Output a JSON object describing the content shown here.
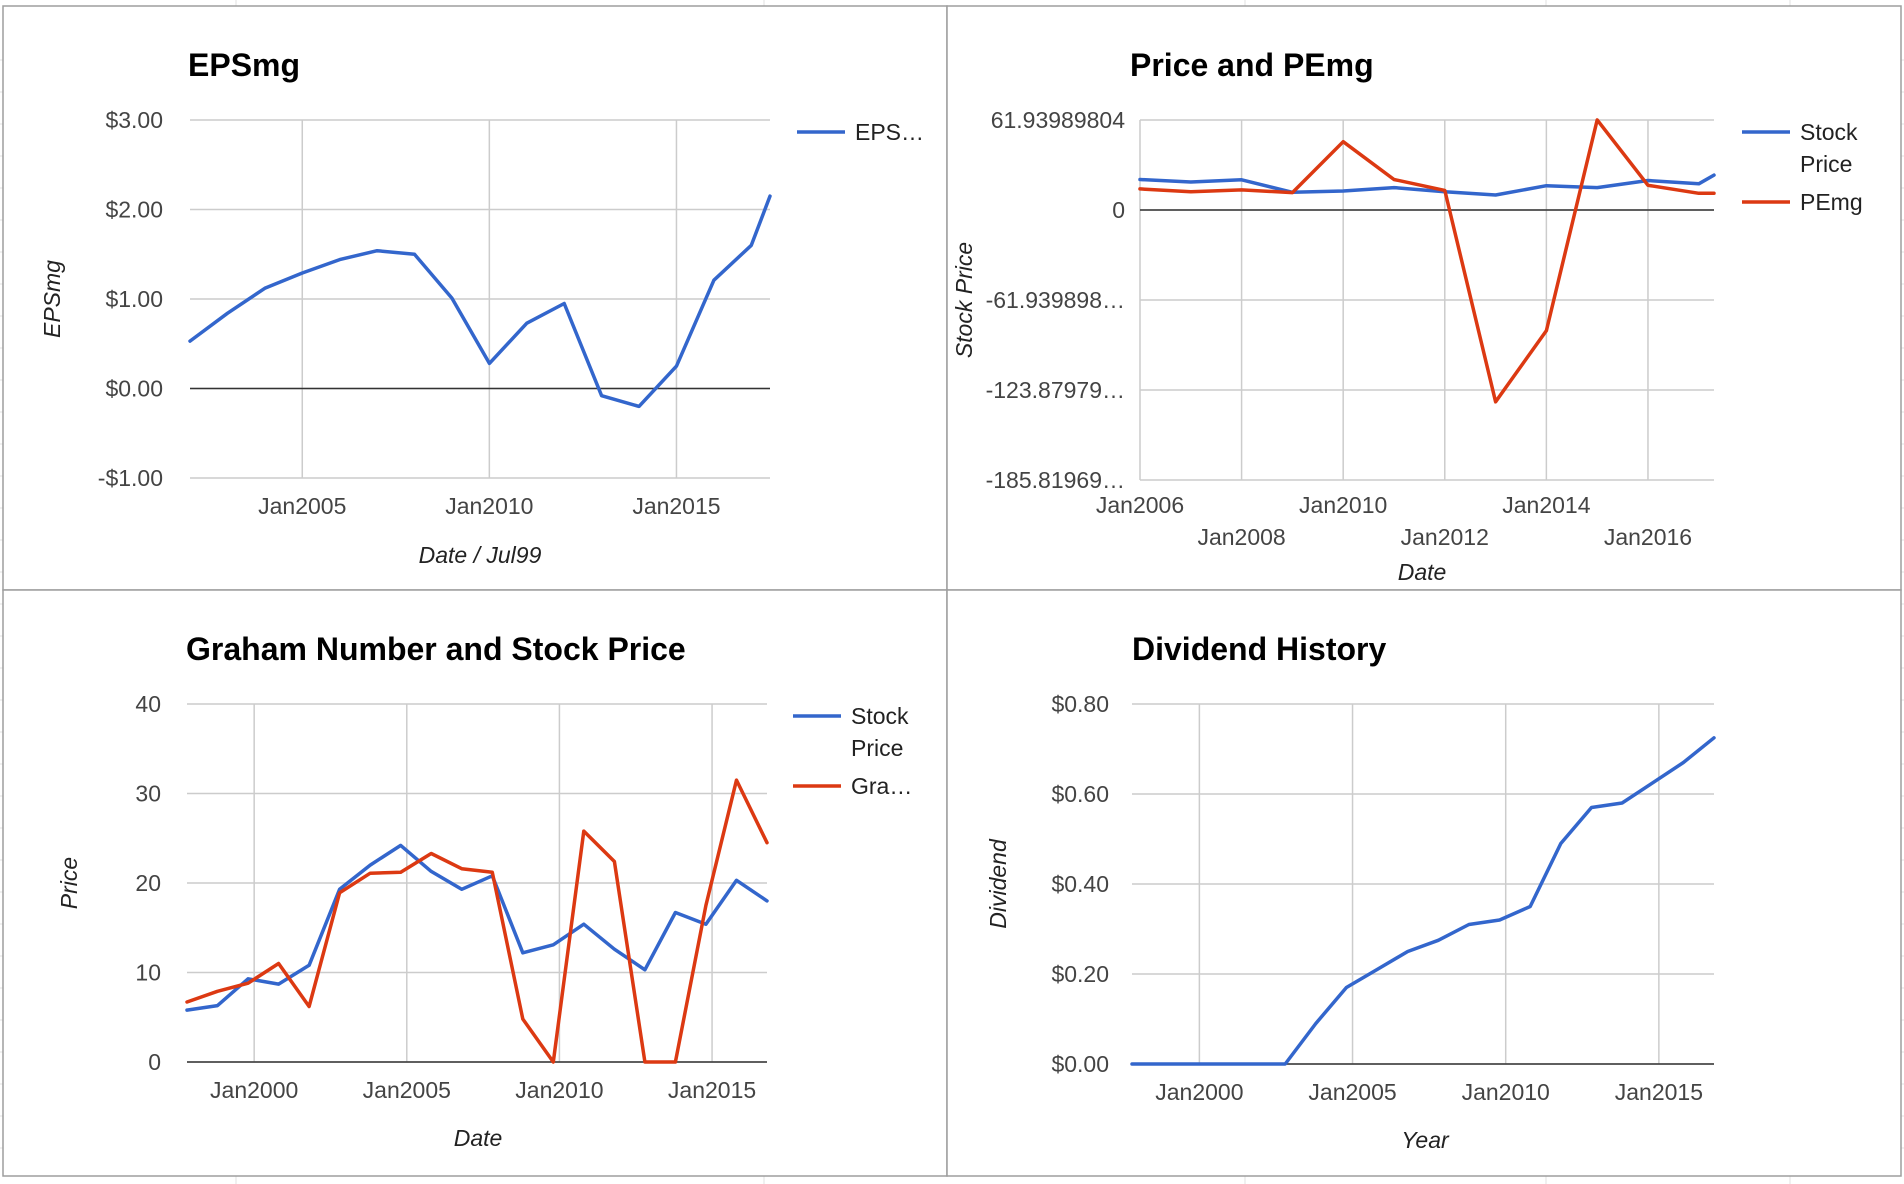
{
  "colors": {
    "blue": "#3366cc",
    "red": "#dc3912",
    "grid": "#cccccc",
    "sheet_line": "#e2e2e2"
  },
  "chart_data": [
    {
      "type": "line",
      "title": "EPSmg",
      "xlabel": "Date / Jul99",
      "ylabel": "EPSmg",
      "xlim": [
        2002.0,
        2017.5
      ],
      "ylim": [
        -1.0,
        3.0
      ],
      "x_ticks": [
        {
          "value": 2005.0,
          "label": "Jan2005"
        },
        {
          "value": 2010.0,
          "label": "Jan2010"
        },
        {
          "value": 2015.0,
          "label": "Jan2015"
        }
      ],
      "y_ticks": [
        {
          "value": 3.0,
          "label": "$3.00"
        },
        {
          "value": 2.0,
          "label": "$2.00"
        },
        {
          "value": 1.0,
          "label": "$1.00"
        },
        {
          "value": 0.0,
          "label": "$0.00"
        },
        {
          "value": -1.0,
          "label": "-$1.00"
        }
      ],
      "baseline": 0,
      "legend": {
        "position": "right",
        "labels": [
          [
            "EPS…"
          ]
        ]
      },
      "series": [
        {
          "name": "EPS…",
          "color": "#3366cc",
          "x": [
            2002.0,
            2003.0,
            2004.0,
            2005.0,
            2006.0,
            2007.0,
            2008.0,
            2009.0,
            2010.0,
            2011.0,
            2012.0,
            2013.0,
            2014.0,
            2015.0,
            2016.0,
            2017.0,
            2017.5
          ],
          "y": [
            0.53,
            0.84,
            1.12,
            1.29,
            1.44,
            1.54,
            1.5,
            1.01,
            0.28,
            0.73,
            0.95,
            -0.08,
            -0.2,
            0.25,
            1.21,
            1.6,
            2.15
          ]
        }
      ]
    },
    {
      "type": "line",
      "title": "Price and PEmg",
      "xlabel": "Date",
      "ylabel": "Stock Price",
      "xlim": [
        2006.0,
        2017.3
      ],
      "ylim": [
        -185.81969,
        61.93989804
      ],
      "x_ticks": [
        {
          "value": 2006.0,
          "label": "Jan2006",
          "row": 1
        },
        {
          "value": 2008.0,
          "label": "Jan2008",
          "row": 2
        },
        {
          "value": 2010.0,
          "label": "Jan2010",
          "row": 1
        },
        {
          "value": 2012.0,
          "label": "Jan2012",
          "row": 2
        },
        {
          "value": 2014.0,
          "label": "Jan2014",
          "row": 1
        },
        {
          "value": 2016.0,
          "label": "Jan2016",
          "row": 2
        }
      ],
      "y_ticks": [
        {
          "value": 61.93989804,
          "label": "61.93989804"
        },
        {
          "value": 0.0,
          "label": "0"
        },
        {
          "value": -61.939898,
          "label": "-61.939898…"
        },
        {
          "value": -123.87979,
          "label": "-123.87979…"
        },
        {
          "value": -185.81969,
          "label": "-185.81969…"
        }
      ],
      "baseline": 0,
      "legend": {
        "position": "right",
        "labels": [
          [
            "Stock",
            "Price"
          ],
          [
            "PEmg"
          ]
        ]
      },
      "series": [
        {
          "name": "Stock Price",
          "color": "#3366cc",
          "x": [
            2006.0,
            2007.0,
            2008.0,
            2009.0,
            2010.0,
            2011.0,
            2012.0,
            2013.0,
            2014.0,
            2015.0,
            2016.0,
            2017.0,
            2017.3
          ],
          "y": [
            21.0,
            19.3,
            20.8,
            12.2,
            13.1,
            15.4,
            12.5,
            10.3,
            16.7,
            15.4,
            20.3,
            18.0,
            24.0
          ]
        },
        {
          "name": "PEmg",
          "color": "#dc3912",
          "x": [
            2006.0,
            2007.0,
            2008.0,
            2009.0,
            2010.0,
            2011.0,
            2012.0,
            2013.0,
            2014.0,
            2015.0,
            2016.0,
            2017.0,
            2017.3
          ],
          "y": [
            14.5,
            12.5,
            13.8,
            12.0,
            47.0,
            21.0,
            13.5,
            -132.0,
            -83.0,
            62.0,
            17.0,
            11.5,
            11.5
          ]
        }
      ]
    },
    {
      "type": "line",
      "title": "Graham Number and Stock Price",
      "xlabel": "Date",
      "ylabel": "Price",
      "xlim": [
        1997.8,
        2016.8
      ],
      "ylim": [
        0,
        40
      ],
      "x_ticks": [
        {
          "value": 2000.0,
          "label": "Jan2000"
        },
        {
          "value": 2005.0,
          "label": "Jan2005"
        },
        {
          "value": 2010.0,
          "label": "Jan2010"
        },
        {
          "value": 2015.0,
          "label": "Jan2015"
        }
      ],
      "y_ticks": [
        {
          "value": 40,
          "label": "40"
        },
        {
          "value": 30,
          "label": "30"
        },
        {
          "value": 20,
          "label": "20"
        },
        {
          "value": 10,
          "label": "10"
        },
        {
          "value": 0,
          "label": "0"
        }
      ],
      "baseline": 0,
      "legend": {
        "position": "right",
        "labels": [
          [
            "Stock",
            "Price"
          ],
          [
            "Gra…"
          ]
        ]
      },
      "series": [
        {
          "name": "Stock Price",
          "color": "#3366cc",
          "x": [
            1997.8,
            1998.8,
            1999.8,
            2000.8,
            2001.8,
            2002.8,
            2003.8,
            2004.8,
            2005.8,
            2006.8,
            2007.8,
            2008.8,
            2009.8,
            2010.8,
            2011.8,
            2012.8,
            2013.8,
            2014.8,
            2015.8,
            2016.8
          ],
          "y": [
            5.8,
            6.3,
            9.3,
            8.7,
            10.8,
            19.3,
            22.0,
            24.2,
            21.3,
            19.3,
            20.8,
            12.2,
            13.1,
            15.4,
            12.6,
            10.3,
            16.7,
            15.4,
            20.3,
            18.0
          ]
        },
        {
          "name": "Gra…",
          "color": "#dc3912",
          "x": [
            1997.8,
            1998.8,
            1999.8,
            2000.8,
            2001.8,
            2002.8,
            2003.8,
            2004.8,
            2005.8,
            2006.8,
            2007.8,
            2008.8,
            2009.8,
            2010.8,
            2011.8,
            2012.8,
            2013.8,
            2014.8,
            2015.8,
            2016.8
          ],
          "y": [
            6.7,
            7.9,
            8.8,
            11.0,
            6.2,
            18.9,
            21.1,
            21.2,
            23.3,
            21.6,
            21.2,
            4.8,
            0,
            25.8,
            22.4,
            0,
            0,
            17.5,
            31.5,
            24.5
          ]
        }
      ]
    },
    {
      "type": "line",
      "title": "Dividend History",
      "xlabel": "Year",
      "ylabel": "Dividend",
      "xlim": [
        1997.8,
        2016.8
      ],
      "ylim": [
        0,
        0.8
      ],
      "x_ticks": [
        {
          "value": 2000.0,
          "label": "Jan2000"
        },
        {
          "value": 2005.0,
          "label": "Jan2005"
        },
        {
          "value": 2010.0,
          "label": "Jan2010"
        },
        {
          "value": 2015.0,
          "label": "Jan2015"
        }
      ],
      "y_ticks": [
        {
          "value": 0.8,
          "label": "$0.80"
        },
        {
          "value": 0.6,
          "label": "$0.60"
        },
        {
          "value": 0.4,
          "label": "$0.40"
        },
        {
          "value": 0.2,
          "label": "$0.20"
        },
        {
          "value": 0.0,
          "label": "$0.00"
        }
      ],
      "baseline": 0,
      "legend": {
        "position": "none",
        "labels": []
      },
      "series": [
        {
          "name": "",
          "color": "#3366cc",
          "x": [
            1997.8,
            1998.8,
            1999.8,
            2000.8,
            2001.8,
            2002.8,
            2003.8,
            2004.8,
            2005.8,
            2006.8,
            2007.8,
            2008.8,
            2009.8,
            2010.8,
            2011.8,
            2012.8,
            2013.8,
            2014.8,
            2015.8,
            2016.8
          ],
          "y": [
            0,
            0,
            0,
            0,
            0,
            0,
            0.09,
            0.17,
            0.21,
            0.25,
            0.275,
            0.31,
            0.32,
            0.35,
            0.49,
            0.57,
            0.58,
            0.625,
            0.67,
            0.725
          ]
        }
      ]
    }
  ]
}
